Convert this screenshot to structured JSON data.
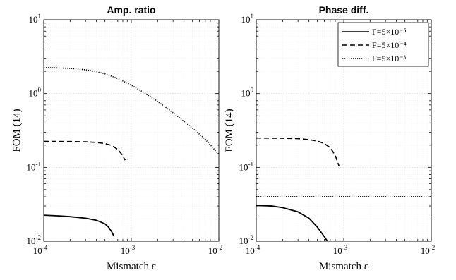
{
  "chart_data": [
    {
      "type": "line",
      "title": "Amp. ratio",
      "xlabel": "Mismatch ε",
      "ylabel": "FOM (14)",
      "xscale": "log",
      "yscale": "log",
      "xlim": [
        0.0001,
        0.01
      ],
      "ylim": [
        0.01,
        10
      ],
      "grid": true,
      "x_ticks": [
        {
          "base": "10",
          "exp": "-4"
        },
        {
          "base": "10",
          "exp": "-3"
        },
        {
          "base": "10",
          "exp": "-2"
        }
      ],
      "y_ticks": [
        {
          "base": "10",
          "exp": "-2"
        },
        {
          "base": "10",
          "exp": "-1"
        },
        {
          "base": "10",
          "exp": "0"
        },
        {
          "base": "10",
          "exp": "1"
        }
      ],
      "series": [
        {
          "style": "solid",
          "x": [
            0.0001,
            0.00015,
            0.0002,
            0.0003,
            0.0004,
            0.0005,
            0.00055,
            0.0006,
            0.00063
          ],
          "y": [
            0.0225,
            0.022,
            0.0215,
            0.0205,
            0.0192,
            0.0172,
            0.0155,
            0.0133,
            0.0118
          ]
        },
        {
          "style": "dashed",
          "x": [
            0.0001,
            0.0002,
            0.0003,
            0.0004,
            0.0005,
            0.0006,
            0.0007,
            0.00078,
            0.00085
          ],
          "y": [
            0.225,
            0.224,
            0.222,
            0.218,
            0.21,
            0.198,
            0.175,
            0.15,
            0.125
          ]
        },
        {
          "style": "dotted",
          "x": [
            0.0001,
            0.0002,
            0.0003,
            0.0004,
            0.0005,
            0.0007,
            0.001,
            0.0015,
            0.002,
            0.003,
            0.005,
            0.007,
            0.01
          ],
          "y": [
            2.25,
            2.2,
            2.1,
            1.98,
            1.85,
            1.6,
            1.3,
            0.98,
            0.78,
            0.55,
            0.34,
            0.24,
            0.15
          ]
        }
      ]
    },
    {
      "type": "line",
      "title": "Phase diff.",
      "xlabel": "Mismatch ε",
      "ylabel": "FOM (14)",
      "xscale": "log",
      "yscale": "log",
      "xlim": [
        0.0001,
        0.01
      ],
      "ylim": [
        0.01,
        10
      ],
      "grid": true,
      "x_ticks": [
        {
          "base": "10",
          "exp": "-4"
        },
        {
          "base": "10",
          "exp": "-3"
        },
        {
          "base": "10",
          "exp": "-2"
        }
      ],
      "y_ticks": [
        {
          "base": "10",
          "exp": "-2"
        },
        {
          "base": "10",
          "exp": "-1"
        },
        {
          "base": "10",
          "exp": "0"
        },
        {
          "base": "10",
          "exp": "1"
        }
      ],
      "legend_position": "top-right",
      "series": [
        {
          "name": "F=5×10⁻⁵",
          "style": "solid",
          "x": [
            0.0001,
            0.00015,
            0.0002,
            0.0003,
            0.0004,
            0.0005,
            0.0006,
            0.00065
          ],
          "y": [
            0.0305,
            0.03,
            0.0285,
            0.025,
            0.0205,
            0.0155,
            0.0115,
            0.01
          ]
        },
        {
          "name": "F=5×10⁻⁴",
          "style": "dashed",
          "x": [
            0.0001,
            0.0002,
            0.0003,
            0.0004,
            0.0005,
            0.0006,
            0.0007,
            0.0008,
            0.00088
          ],
          "y": [
            0.25,
            0.248,
            0.245,
            0.238,
            0.227,
            0.21,
            0.185,
            0.145,
            0.105
          ]
        },
        {
          "name": "F=5×10⁻³",
          "style": "dotted",
          "x": [
            0.0001,
            0.001,
            0.01
          ],
          "y": [
            0.04,
            0.04,
            0.04
          ]
        }
      ]
    }
  ]
}
